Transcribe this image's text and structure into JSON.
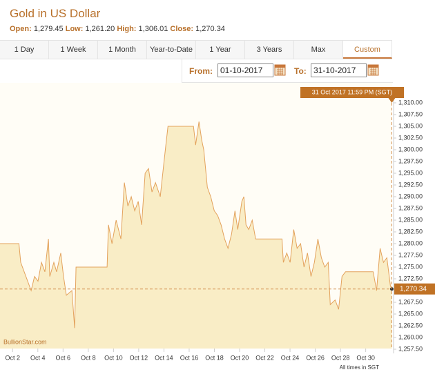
{
  "header": {
    "title": "Gold in US Dollar",
    "stats": [
      {
        "label": "Open:",
        "value": "1,279.45"
      },
      {
        "label": "Low:",
        "value": "1,261.20"
      },
      {
        "label": "High:",
        "value": "1,306.01"
      },
      {
        "label": "Close:",
        "value": "1,270.34"
      }
    ]
  },
  "tabs": [
    "1 Day",
    "1 Week",
    "1 Month",
    "Year-to-Date",
    "1 Year",
    "3 Years",
    "Max",
    "Custom"
  ],
  "active_tab": "Custom",
  "range": {
    "from_label": "From:",
    "from": "01-10-2017",
    "to_label": "To:",
    "to": "31-10-2017"
  },
  "chart_data": {
    "type": "area",
    "x": [
      1.0,
      2.5,
      2.64,
      3.47,
      3.74,
      4.01,
      4.29,
      4.56,
      4.84,
      4.95,
      5.27,
      5.49,
      5.82,
      6.04,
      6.26,
      6.48,
      6.7,
      6.92,
      7.03,
      7.25,
      9.49,
      9.6,
      9.88,
      10.21,
      10.59,
      10.86,
      11.14,
      11.41,
      11.68,
      11.96,
      12.23,
      12.51,
      12.78,
      13.05,
      13.33,
      13.71,
      13.99,
      14.15,
      14.32,
      16.34,
      16.51,
      16.78,
      17.0,
      17.16,
      17.44,
      17.71,
      17.99,
      18.26,
      18.53,
      18.81,
      19.08,
      19.36,
      19.63,
      19.85,
      20.18,
      20.34,
      20.51,
      20.73,
      21.0,
      21.27,
      23.36,
      23.47,
      23.74,
      24.01,
      24.29,
      24.56,
      24.84,
      25.11,
      25.38,
      25.66,
      25.93,
      26.21,
      26.48,
      26.75,
      27.03,
      27.19,
      27.58,
      27.85,
      28.12,
      28.4,
      30.59,
      30.86,
      31.14,
      31.41,
      31.68,
      31.96,
      32.07
    ],
    "values": [
      1280,
      1280,
      1276,
      1270,
      1273,
      1272,
      1276,
      1274,
      1281,
      1273,
      1276,
      1274,
      1278,
      1273,
      1269,
      1269.5,
      1270,
      1262,
      1275,
      1275,
      1275,
      1284,
      1280,
      1285,
      1281,
      1293,
      1288,
      1290,
      1287,
      1289,
      1284,
      1295,
      1296,
      1291,
      1293,
      1290,
      1297,
      1301,
      1305,
      1305,
      1301,
      1306,
      1302,
      1300,
      1292,
      1290,
      1287,
      1286,
      1284,
      1281,
      1279,
      1282,
      1287,
      1283,
      1289,
      1290,
      1284,
      1283,
      1285,
      1281,
      1281,
      1276,
      1278,
      1276,
      1283,
      1279,
      1280,
      1275,
      1278,
      1273,
      1276,
      1281,
      1277,
      1275,
      1276,
      1267,
      1268,
      1266,
      1273,
      1274,
      1274,
      1270,
      1279,
      1276,
      1277,
      1271,
      1270.34
    ],
    "color": "#e3a25c",
    "fill": "#f9edc6",
    "xlim": [
      1,
      32.1
    ],
    "ylim": [
      1257.5,
      1310
    ],
    "xticks": [
      {
        "value": 2,
        "label": "Oct 2"
      },
      {
        "value": 4,
        "label": "Oct 4"
      },
      {
        "value": 6,
        "label": "Oct 6"
      },
      {
        "value": 8,
        "label": "Oct 8"
      },
      {
        "value": 10,
        "label": "Oct 10"
      },
      {
        "value": 12,
        "label": "Oct 12"
      },
      {
        "value": 14,
        "label": "Oct 14"
      },
      {
        "value": 16,
        "label": "Oct 16"
      },
      {
        "value": 18,
        "label": "Oct 18"
      },
      {
        "value": 20,
        "label": "Oct 20"
      },
      {
        "value": 22,
        "label": "Oct 22"
      },
      {
        "value": 24,
        "label": "Oct 24"
      },
      {
        "value": 26,
        "label": "Oct 26"
      },
      {
        "value": 28,
        "label": "Oct 28"
      },
      {
        "value": 30,
        "label": "Oct 30"
      }
    ],
    "yticks": [
      {
        "value": 1257.5,
        "label": "1,257.50"
      },
      {
        "value": 1260,
        "label": "1,260.00"
      },
      {
        "value": 1262.5,
        "label": "1,262.50"
      },
      {
        "value": 1265,
        "label": "1,265.00"
      },
      {
        "value": 1267.5,
        "label": "1,267.50"
      },
      {
        "value": 1270,
        "label": "1,270.00"
      },
      {
        "value": 1272.5,
        "label": "1,272.50"
      },
      {
        "value": 1275,
        "label": "1,275.00"
      },
      {
        "value": 1277.5,
        "label": "1,277.50"
      },
      {
        "value": 1280,
        "label": "1,280.00"
      },
      {
        "value": 1282.5,
        "label": "1,282.50"
      },
      {
        "value": 1285,
        "label": "1,285.00"
      },
      {
        "value": 1287.5,
        "label": "1,287.50"
      },
      {
        "value": 1290,
        "label": "1,290.00"
      },
      {
        "value": 1292.5,
        "label": "1,292.50"
      },
      {
        "value": 1295,
        "label": "1,295.00"
      },
      {
        "value": 1297.5,
        "label": "1,297.50"
      },
      {
        "value": 1300,
        "label": "1,300.00"
      },
      {
        "value": 1302.5,
        "label": "1,302.50"
      },
      {
        "value": 1305,
        "label": "1,305.00"
      },
      {
        "value": 1307.5,
        "label": "1,307.50"
      },
      {
        "value": 1310,
        "label": "1,310.00"
      }
    ],
    "close_label": {
      "value": 1270.34,
      "label": "1,270.34"
    },
    "crosshair_label": "31 Oct 2017 11:59 PM (SGT)",
    "watermark": "BullionStar.com",
    "footnote": "All times in SGT"
  }
}
